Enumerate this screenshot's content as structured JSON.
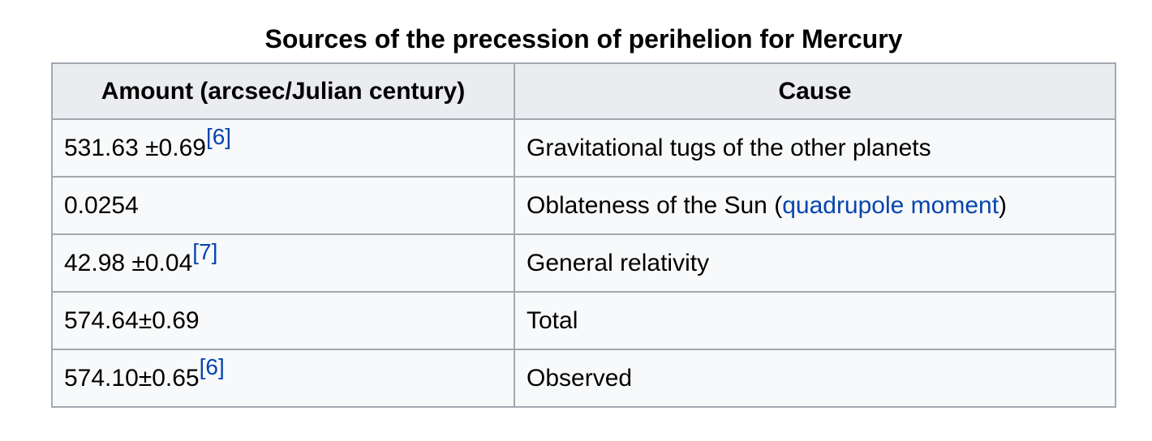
{
  "table": {
    "caption": "Sources of the precession of perihelion for Mercury",
    "header": [
      "Amount (arcsec/Julian century)",
      "Cause"
    ],
    "rows": [
      [
        {
          "text": "531.63 ±0.69",
          "ref": "[6]"
        },
        {
          "text": "Gravitational tugs of the other planets"
        }
      ],
      [
        {
          "text": "0.0254"
        },
        {
          "text": "Oblateness of the Sun (",
          "link": "quadrupole moment",
          "after": ")"
        }
      ],
      [
        {
          "text": "42.98 ±0.04",
          "ref": "[7]"
        },
        {
          "text": "General relativity"
        }
      ],
      [
        {
          "text": "574.64±0.69"
        },
        {
          "text": "Total"
        }
      ],
      [
        {
          "text": "574.10±0.65",
          "ref": "[6]"
        },
        {
          "text": "Observed"
        }
      ]
    ]
  }
}
